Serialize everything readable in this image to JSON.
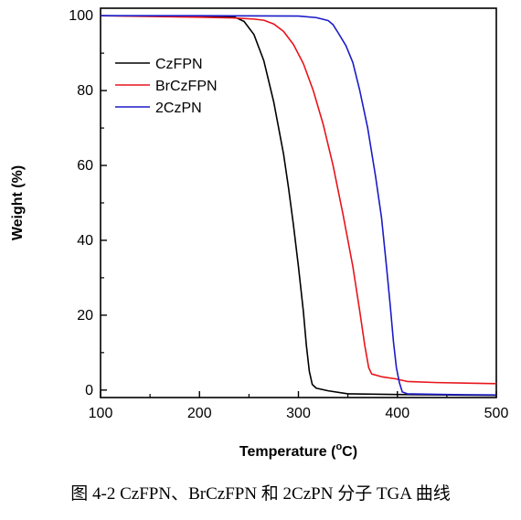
{
  "chart_data": {
    "type": "line",
    "title": "",
    "xlabel": "Temperature (°C)",
    "xlabel_parts": {
      "pre": "Temperature (",
      "sup": "o",
      "post": "C)"
    },
    "ylabel": "Weight (%)",
    "xlim": [
      100,
      500
    ],
    "ylim": [
      -2,
      102
    ],
    "xticks": [
      100,
      200,
      300,
      400,
      500
    ],
    "yticks": [
      0,
      20,
      40,
      60,
      80,
      100
    ],
    "grid": false,
    "legend_position": "top-left",
    "series": [
      {
        "name": "CzFPN",
        "color": "#000000",
        "points": [
          [
            100,
            100
          ],
          [
            200,
            99.9
          ],
          [
            235,
            99.7
          ],
          [
            245,
            98.5
          ],
          [
            255,
            95
          ],
          [
            265,
            88
          ],
          [
            275,
            77
          ],
          [
            285,
            63
          ],
          [
            290,
            54
          ],
          [
            295,
            44
          ],
          [
            300,
            33
          ],
          [
            305,
            21
          ],
          [
            308,
            12
          ],
          [
            311,
            5
          ],
          [
            314,
            1.5
          ],
          [
            318,
            0.5
          ],
          [
            330,
            -0.2
          ],
          [
            350,
            -1.0
          ],
          [
            400,
            -1.2
          ],
          [
            500,
            -1.4
          ]
        ]
      },
      {
        "name": "BrCzFPN",
        "color": "#e8141b",
        "points": [
          [
            100,
            100
          ],
          [
            200,
            99.6
          ],
          [
            235,
            99.4
          ],
          [
            255,
            99.1
          ],
          [
            265,
            98.8
          ],
          [
            275,
            97.8
          ],
          [
            285,
            95.8
          ],
          [
            295,
            92.3
          ],
          [
            305,
            87.2
          ],
          [
            315,
            80
          ],
          [
            325,
            71
          ],
          [
            335,
            60
          ],
          [
            345,
            47
          ],
          [
            355,
            33
          ],
          [
            362,
            21
          ],
          [
            367,
            12
          ],
          [
            371,
            6
          ],
          [
            374,
            4.3
          ],
          [
            385,
            3.5
          ],
          [
            398,
            3.0
          ],
          [
            410,
            2.3
          ],
          [
            440,
            2.0
          ],
          [
            500,
            1.7
          ]
        ]
      },
      {
        "name": "2CzPN",
        "color": "#1b1bc8",
        "points": [
          [
            100,
            100
          ],
          [
            200,
            100
          ],
          [
            300,
            99.9
          ],
          [
            318,
            99.5
          ],
          [
            330,
            98.7
          ],
          [
            335,
            97.6
          ],
          [
            340,
            95.5
          ],
          [
            348,
            92
          ],
          [
            355,
            87.5
          ],
          [
            362,
            80
          ],
          [
            370,
            70
          ],
          [
            378,
            57
          ],
          [
            384,
            46
          ],
          [
            389,
            33
          ],
          [
            393,
            22
          ],
          [
            396,
            13
          ],
          [
            399,
            6
          ],
          [
            402,
            2
          ],
          [
            405,
            -0.5
          ],
          [
            410,
            -1.0
          ],
          [
            450,
            -1.2
          ],
          [
            500,
            -1.3
          ]
        ]
      }
    ]
  },
  "caption": "图 4-2 CzFPN、BrCzFPN 和 2CzPN 分子 TGA 曲线"
}
